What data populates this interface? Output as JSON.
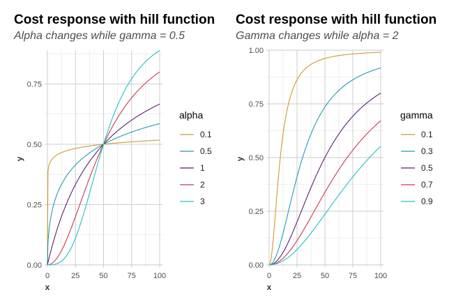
{
  "chart_data": [
    {
      "type": "line",
      "title": "Cost response with hill function",
      "subtitle": "Alpha changes while gamma = 0.5",
      "xlabel": "x",
      "ylabel": "y",
      "xlim": [
        0,
        100
      ],
      "ylim": [
        0,
        0.89
      ],
      "xticks": [
        0,
        25,
        50,
        75,
        100
      ],
      "yticks": [
        0.0,
        0.25,
        0.5,
        0.75
      ],
      "ytick_labels": [
        "0.00",
        "0.25",
        "0.50",
        "0.75"
      ],
      "grid": true,
      "legend_title": "alpha",
      "legend_position": "right",
      "param_name": "alpha",
      "fixed_gamma": 0.5,
      "series": [
        {
          "name": "0.1",
          "alpha": 0.1,
          "color": "#cc9a2e"
        },
        {
          "name": "0.5",
          "alpha": 0.5,
          "color": "#1f9bb4"
        },
        {
          "name": "1",
          "alpha": 1,
          "color": "#5a1f6e"
        },
        {
          "name": "2",
          "alpha": 2,
          "color": "#c8384e"
        },
        {
          "name": "3",
          "alpha": 3,
          "color": "#22c0c6"
        }
      ]
    },
    {
      "type": "line",
      "title": "Cost response with hill function",
      "subtitle": "Gamma changes while alpha = 2",
      "xlabel": "x",
      "ylabel": "y",
      "xlim": [
        0,
        100
      ],
      "ylim": [
        0,
        1.0
      ],
      "xticks": [
        0,
        25,
        50,
        75,
        100
      ],
      "yticks": [
        0.0,
        0.25,
        0.5,
        0.75,
        1.0
      ],
      "ytick_labels": [
        "0.00",
        "0.25",
        "0.50",
        "0.75",
        "1.00"
      ],
      "grid": true,
      "legend_title": "gamma",
      "legend_position": "right",
      "param_name": "gamma",
      "fixed_alpha": 2,
      "series": [
        {
          "name": "0.1",
          "gamma": 0.1,
          "color": "#cc9a2e"
        },
        {
          "name": "0.3",
          "gamma": 0.3,
          "color": "#1f9bb4"
        },
        {
          "name": "0.5",
          "gamma": 0.5,
          "color": "#5a1f6e"
        },
        {
          "name": "0.7",
          "gamma": 0.7,
          "color": "#c8384e"
        },
        {
          "name": "0.9",
          "gamma": 0.9,
          "color": "#22c0c6"
        }
      ]
    }
  ]
}
